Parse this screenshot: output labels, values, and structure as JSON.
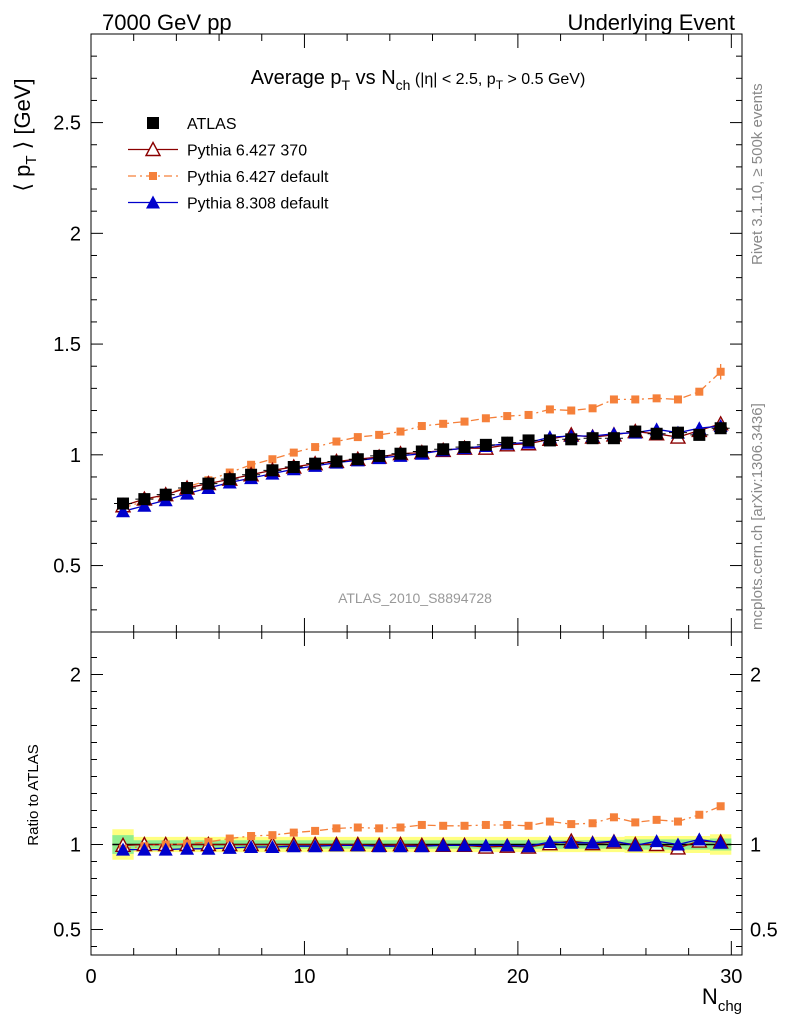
{
  "header": {
    "left": "7000 GeV pp",
    "right": "Underlying Event"
  },
  "side_labels": {
    "rivet": "Rivet 3.1.10, ≥ 500k events",
    "mcplots": "mcplots.cern.ch [arXiv:1306.3436]"
  },
  "watermark": "ATLAS_2010_S8894728",
  "colors": {
    "atlas": "#000000",
    "py6_370": "#8b0000",
    "py6_default": "#f5803a",
    "py8": "#0000cc",
    "band_inner": "#90ee90",
    "band_outer": "#ffff80"
  },
  "chart_data": [
    {
      "type": "scatter",
      "panel": "main",
      "title": {
        "a": "Average p",
        "a_sub": "T",
        "b": " vs N",
        "b_sub": "ch",
        "c": " (|η| < 2.5, p",
        "c_sub": "T",
        "d": " > 0.5 GeV)"
      },
      "ylabel": {
        "a": "⟨ p",
        "sub": "T",
        "b": " ⟩ [GeV]"
      },
      "xlim": [
        0,
        30.5
      ],
      "ylim": [
        0.2,
        2.9
      ],
      "yticks": [
        0.5,
        1,
        1.5,
        2,
        2.5
      ],
      "ytick_labels": [
        "0.5",
        "1",
        "1.5",
        "2",
        "2.5"
      ],
      "legend_position": "top-left",
      "x": [
        1.5,
        2.5,
        3.5,
        4.5,
        5.5,
        6.5,
        7.5,
        8.5,
        9.5,
        10.5,
        11.5,
        12.5,
        13.5,
        14.5,
        15.5,
        16.5,
        17.5,
        18.5,
        19.5,
        20.5,
        21.5,
        22.5,
        23.5,
        24.5,
        25.5,
        26.5,
        27.5,
        28.5,
        29.5
      ],
      "series": [
        {
          "name": "ATLAS",
          "marker": "square",
          "line": "none",
          "color_key": "atlas",
          "values": [
            0.78,
            0.8,
            0.82,
            0.85,
            0.87,
            0.89,
            0.91,
            0.93,
            0.945,
            0.96,
            0.97,
            0.98,
            0.995,
            1.005,
            1.015,
            1.025,
            1.035,
            1.045,
            1.055,
            1.065,
            1.065,
            1.07,
            1.075,
            1.075,
            1.105,
            1.095,
            1.1,
            1.09,
            1.12
          ]
        },
        {
          "name": "Pythia 6.427 370",
          "marker": "triangle-open",
          "line": "solid",
          "color_key": "py6_370",
          "values": [
            0.77,
            0.8,
            0.82,
            0.85,
            0.87,
            0.89,
            0.91,
            0.93,
            0.945,
            0.96,
            0.97,
            0.98,
            0.99,
            1.005,
            1.01,
            1.02,
            1.03,
            1.03,
            1.045,
            1.05,
            1.07,
            1.09,
            1.08,
            1.09,
            1.105,
            1.095,
            1.08,
            1.11,
            1.14
          ]
        },
        {
          "name": "Pythia 6.427 default",
          "marker": "square-small",
          "line": "dashdot",
          "color_key": "py6_default",
          "values": [
            0.76,
            0.79,
            0.82,
            0.855,
            0.885,
            0.92,
            0.955,
            0.98,
            1.01,
            1.035,
            1.06,
            1.08,
            1.09,
            1.105,
            1.13,
            1.14,
            1.15,
            1.165,
            1.175,
            1.18,
            1.205,
            1.2,
            1.21,
            1.25,
            1.25,
            1.255,
            1.25,
            1.285,
            1.375
          ]
        },
        {
          "name": "Pythia 8.308 default",
          "marker": "triangle",
          "line": "solid",
          "color_key": "py8",
          "values": [
            0.745,
            0.77,
            0.795,
            0.825,
            0.85,
            0.875,
            0.895,
            0.915,
            0.935,
            0.95,
            0.965,
            0.975,
            0.985,
            0.995,
            1.005,
            1.02,
            1.03,
            1.04,
            1.05,
            1.055,
            1.08,
            1.085,
            1.085,
            1.095,
            1.1,
            1.115,
            1.1,
            1.12,
            1.13
          ]
        }
      ]
    },
    {
      "type": "line",
      "panel": "ratio",
      "ylabel": "Ratio to ATLAS",
      "xlabel": {
        "a": "N",
        "sub": "chg"
      },
      "xlim": [
        0,
        30.5
      ],
      "ylim": [
        0.35,
        2.25
      ],
      "xticks": [
        0,
        10,
        20,
        30
      ],
      "xtick_labels": [
        "0",
        "10",
        "20",
        "30"
      ],
      "yticks": [
        0.5,
        1,
        2
      ],
      "ytick_labels": [
        "0.5",
        "1",
        "2"
      ],
      "reference": 1.0,
      "band_inner_halfwidth": [
        0.055,
        0.025,
        0.025,
        0.025,
        0.025,
        0.025,
        0.025,
        0.025,
        0.025,
        0.025,
        0.025,
        0.025,
        0.025,
        0.025,
        0.025,
        0.025,
        0.025,
        0.025,
        0.025,
        0.025,
        0.025,
        0.025,
        0.025,
        0.025,
        0.03,
        0.03,
        0.03,
        0.03,
        0.035
      ],
      "band_outer_halfwidth": [
        0.09,
        0.045,
        0.045,
        0.045,
        0.045,
        0.045,
        0.045,
        0.045,
        0.045,
        0.045,
        0.045,
        0.045,
        0.045,
        0.045,
        0.045,
        0.045,
        0.045,
        0.045,
        0.045,
        0.045,
        0.045,
        0.045,
        0.045,
        0.045,
        0.05,
        0.05,
        0.05,
        0.05,
        0.06
      ],
      "series": [
        {
          "name": "Pythia 6.427 370",
          "marker": "triangle-open",
          "line": "solid",
          "color_key": "py6_370",
          "values": [
            0.995,
            1.0,
            1.0,
            1.0,
            1.0,
            1.0,
            1.0,
            1.0,
            1.0,
            1.0,
            1.0,
            1.0,
            0.995,
            1.0,
            0.995,
            0.995,
            0.995,
            0.985,
            0.99,
            0.985,
            1.005,
            1.02,
            1.005,
            1.015,
            1.0,
            1.0,
            0.98,
            1.02,
            1.015
          ]
        },
        {
          "name": "Pythia 6.427 default",
          "marker": "square-small",
          "line": "dashdot",
          "color_key": "py6_default",
          "values": [
            0.975,
            0.99,
            1.0,
            1.005,
            1.015,
            1.035,
            1.05,
            1.055,
            1.07,
            1.08,
            1.095,
            1.1,
            1.095,
            1.1,
            1.115,
            1.11,
            1.11,
            1.115,
            1.115,
            1.11,
            1.135,
            1.12,
            1.125,
            1.16,
            1.13,
            1.145,
            1.135,
            1.175,
            1.225
          ]
        },
        {
          "name": "Pythia 8.308 default",
          "marker": "triangle",
          "line": "solid",
          "color_key": "py8",
          "values": [
            0.97,
            0.97,
            0.97,
            0.975,
            0.975,
            0.98,
            0.985,
            0.985,
            0.99,
            0.99,
            0.995,
            0.995,
            0.99,
            0.99,
            0.99,
            0.995,
            0.995,
            0.995,
            0.995,
            0.99,
            1.015,
            1.01,
            1.01,
            1.02,
            0.995,
            1.02,
            1.0,
            1.03,
            1.01
          ]
        }
      ]
    }
  ]
}
